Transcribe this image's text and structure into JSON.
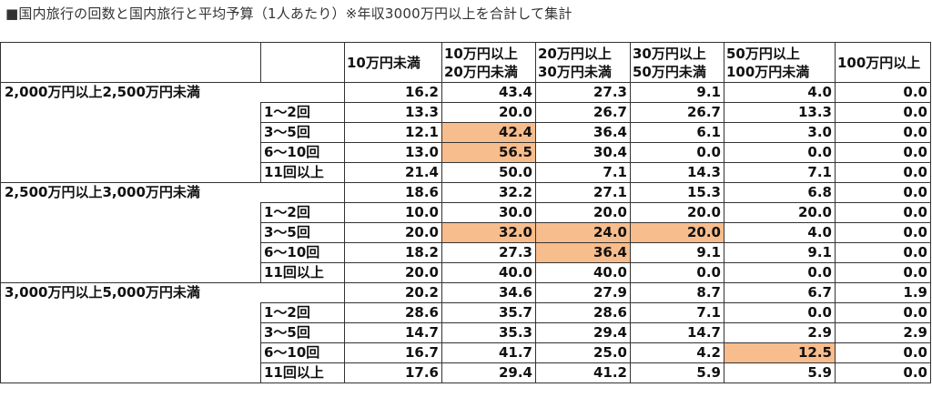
{
  "title": "■国内旅行の回数と国内旅行と平均予算（1人あたり）※年収3000万円以上を合計して集計",
  "highlight_color": "#f8bd8c",
  "columns": [
    {
      "line1": "10万円未満",
      "line2": ""
    },
    {
      "line1": "10万円以上",
      "line2": "20万円未満"
    },
    {
      "line1": "20万円以上",
      "line2": "30万円未満"
    },
    {
      "line1": "30万円以上",
      "line2": "50万円未満"
    },
    {
      "line1": "50万円以上",
      "line2": "100万円未満"
    },
    {
      "line1": "100万円以上",
      "line2": ""
    }
  ],
  "groups": [
    {
      "label": "2,000万円以上2,500万円未満",
      "total": [
        "16.2",
        "43.4",
        "27.3",
        "9.1",
        "4.0",
        "0.0"
      ],
      "rows": [
        {
          "label": "1～2回",
          "values": [
            "13.3",
            "20.0",
            "26.7",
            "26.7",
            "13.3",
            "0.0"
          ],
          "highlight": []
        },
        {
          "label": "3～5回",
          "values": [
            "12.1",
            "42.4",
            "36.4",
            "6.1",
            "3.0",
            "0.0"
          ],
          "highlight": [
            1
          ]
        },
        {
          "label": "6～10回",
          "values": [
            "13.0",
            "56.5",
            "30.4",
            "0.0",
            "0.0",
            "0.0"
          ],
          "highlight": [
            1
          ]
        },
        {
          "label": "11回以上",
          "values": [
            "21.4",
            "50.0",
            "7.1",
            "14.3",
            "7.1",
            "0.0"
          ],
          "highlight": []
        }
      ]
    },
    {
      "label": "2,500万円以上3,000万円未満",
      "total": [
        "18.6",
        "32.2",
        "27.1",
        "15.3",
        "6.8",
        "0.0"
      ],
      "rows": [
        {
          "label": "1～2回",
          "values": [
            "10.0",
            "30.0",
            "20.0",
            "20.0",
            "20.0",
            "0.0"
          ],
          "highlight": []
        },
        {
          "label": "3～5回",
          "values": [
            "20.0",
            "32.0",
            "24.0",
            "20.0",
            "4.0",
            "0.0"
          ],
          "highlight": [
            1,
            2,
            3
          ]
        },
        {
          "label": "6～10回",
          "values": [
            "18.2",
            "27.3",
            "36.4",
            "9.1",
            "9.1",
            "0.0"
          ],
          "highlight": [
            2
          ]
        },
        {
          "label": "11回以上",
          "values": [
            "20.0",
            "40.0",
            "40.0",
            "0.0",
            "0.0",
            "0.0"
          ],
          "highlight": []
        }
      ]
    },
    {
      "label": "3,000万円以上5,000万円未満",
      "total": [
        "20.2",
        "34.6",
        "27.9",
        "8.7",
        "6.7",
        "1.9"
      ],
      "rows": [
        {
          "label": "1～2回",
          "values": [
            "28.6",
            "35.7",
            "28.6",
            "7.1",
            "0.0",
            "0.0"
          ],
          "highlight": []
        },
        {
          "label": "3～5回",
          "values": [
            "14.7",
            "35.3",
            "29.4",
            "14.7",
            "2.9",
            "2.9"
          ],
          "highlight": []
        },
        {
          "label": "6～10回",
          "values": [
            "16.7",
            "41.7",
            "25.0",
            "4.2",
            "12.5",
            "0.0"
          ],
          "highlight": [
            4
          ]
        },
        {
          "label": "11回以上",
          "values": [
            "17.6",
            "29.4",
            "41.2",
            "5.9",
            "5.9",
            "0.0"
          ],
          "highlight": []
        }
      ]
    }
  ]
}
